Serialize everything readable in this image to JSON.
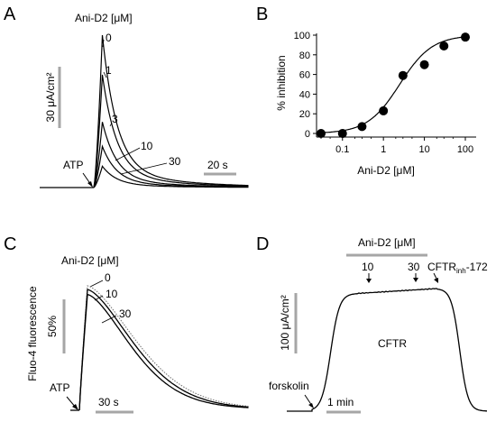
{
  "panels": {
    "A": {
      "letter": "A",
      "legend_title": "Ani-D2 [μM]",
      "trace_labels": [
        "0",
        "1",
        "3",
        "10",
        "30"
      ],
      "stimulus_label": "ATP",
      "scale_y_label": "30 μA/cm²",
      "scale_x_label": "20 s"
    },
    "B": {
      "letter": "B",
      "ylabel": "% inhibition",
      "xlabel": "Ani-D2 [μM]",
      "yticks": [
        "0",
        "20",
        "40",
        "60",
        "80",
        "100"
      ],
      "xticks": [
        "0.1",
        "1",
        "10",
        "100"
      ]
    },
    "C": {
      "letter": "C",
      "legend_title": "Ani-D2 [μM]",
      "trace_labels": [
        "0",
        "10",
        "30"
      ],
      "stimulus_label": "ATP",
      "ylabel": "Fluo-4 fluorescence",
      "scale_y_label": "50%",
      "scale_x_label": "30 s"
    },
    "D": {
      "letter": "D",
      "bar_label": "Ani-D2 [μM]",
      "dose_labels": [
        "10",
        "30"
      ],
      "inhibitor_label_main": "CFTR",
      "inhibitor_label_sub": "inh",
      "inhibitor_label_suffix": "-172",
      "center_label": "CFTR",
      "stimulus_label": "forskolin",
      "scale_y_label": "100 μA/cm²",
      "scale_x_label": "1 min"
    }
  },
  "chart_data": [
    {
      "panel": "A",
      "type": "line",
      "series": [
        {
          "name": "0",
          "peak": 1.0
        },
        {
          "name": "1",
          "peak": 0.74
        },
        {
          "name": "3",
          "peak": 0.43
        },
        {
          "name": "10",
          "peak": 0.27
        },
        {
          "name": "30",
          "peak": 0.14
        }
      ]
    },
    {
      "panel": "B",
      "type": "scatter",
      "xscale": "log",
      "xlabel": "Ani-D2 [μM]",
      "ylabel": "% inhibition",
      "xlim": [
        0.03,
        100
      ],
      "ylim": [
        0,
        100
      ],
      "points": [
        {
          "x": 0.03,
          "y": 0
        },
        {
          "x": 0.1,
          "y": 0
        },
        {
          "x": 0.3,
          "y": 7
        },
        {
          "x": 1,
          "y": 23
        },
        {
          "x": 3,
          "y": 59
        },
        {
          "x": 10,
          "y": 70
        },
        {
          "x": 30,
          "y": 89
        },
        {
          "x": 100,
          "y": 98
        }
      ],
      "fit": {
        "ic50": 2.5,
        "hill": 1.1,
        "max": 100
      }
    },
    {
      "panel": "C",
      "type": "line",
      "series": [
        {
          "name": "0",
          "peak": 1.0,
          "style": "dotted"
        },
        {
          "name": "10",
          "peak": 0.97
        },
        {
          "name": "30",
          "peak": 0.93
        }
      ]
    },
    {
      "panel": "D",
      "type": "line",
      "series": [
        {
          "name": "CFTR",
          "baseline": 0,
          "plateau": 1.0
        }
      ]
    }
  ]
}
